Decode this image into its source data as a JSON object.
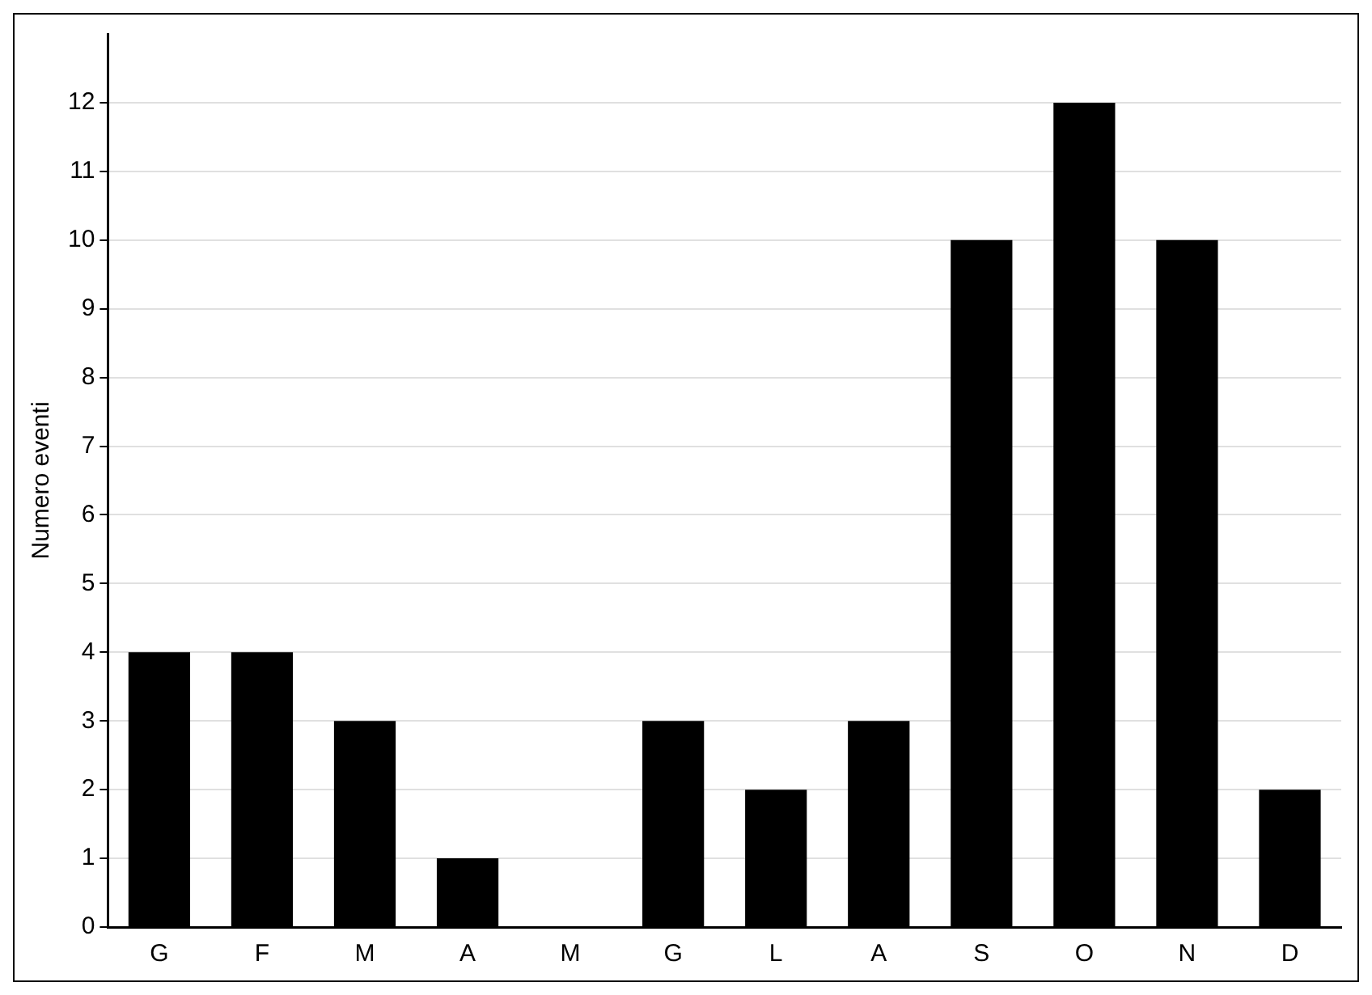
{
  "chart_data": {
    "type": "bar",
    "ylabel": "Numero eventi",
    "categories": [
      "G",
      "F",
      "M",
      "A",
      "M",
      "G",
      "L",
      "A",
      "S",
      "O",
      "N",
      "D"
    ],
    "values": [
      4,
      4,
      3,
      1,
      0,
      3,
      2,
      3,
      10,
      12,
      10,
      2
    ],
    "color": "#000000",
    "ylim": [
      0,
      13
    ],
    "yticks": [
      0,
      1,
      2,
      3,
      4,
      5,
      6,
      7,
      8,
      9,
      10,
      11,
      12
    ],
    "grid": "y"
  }
}
